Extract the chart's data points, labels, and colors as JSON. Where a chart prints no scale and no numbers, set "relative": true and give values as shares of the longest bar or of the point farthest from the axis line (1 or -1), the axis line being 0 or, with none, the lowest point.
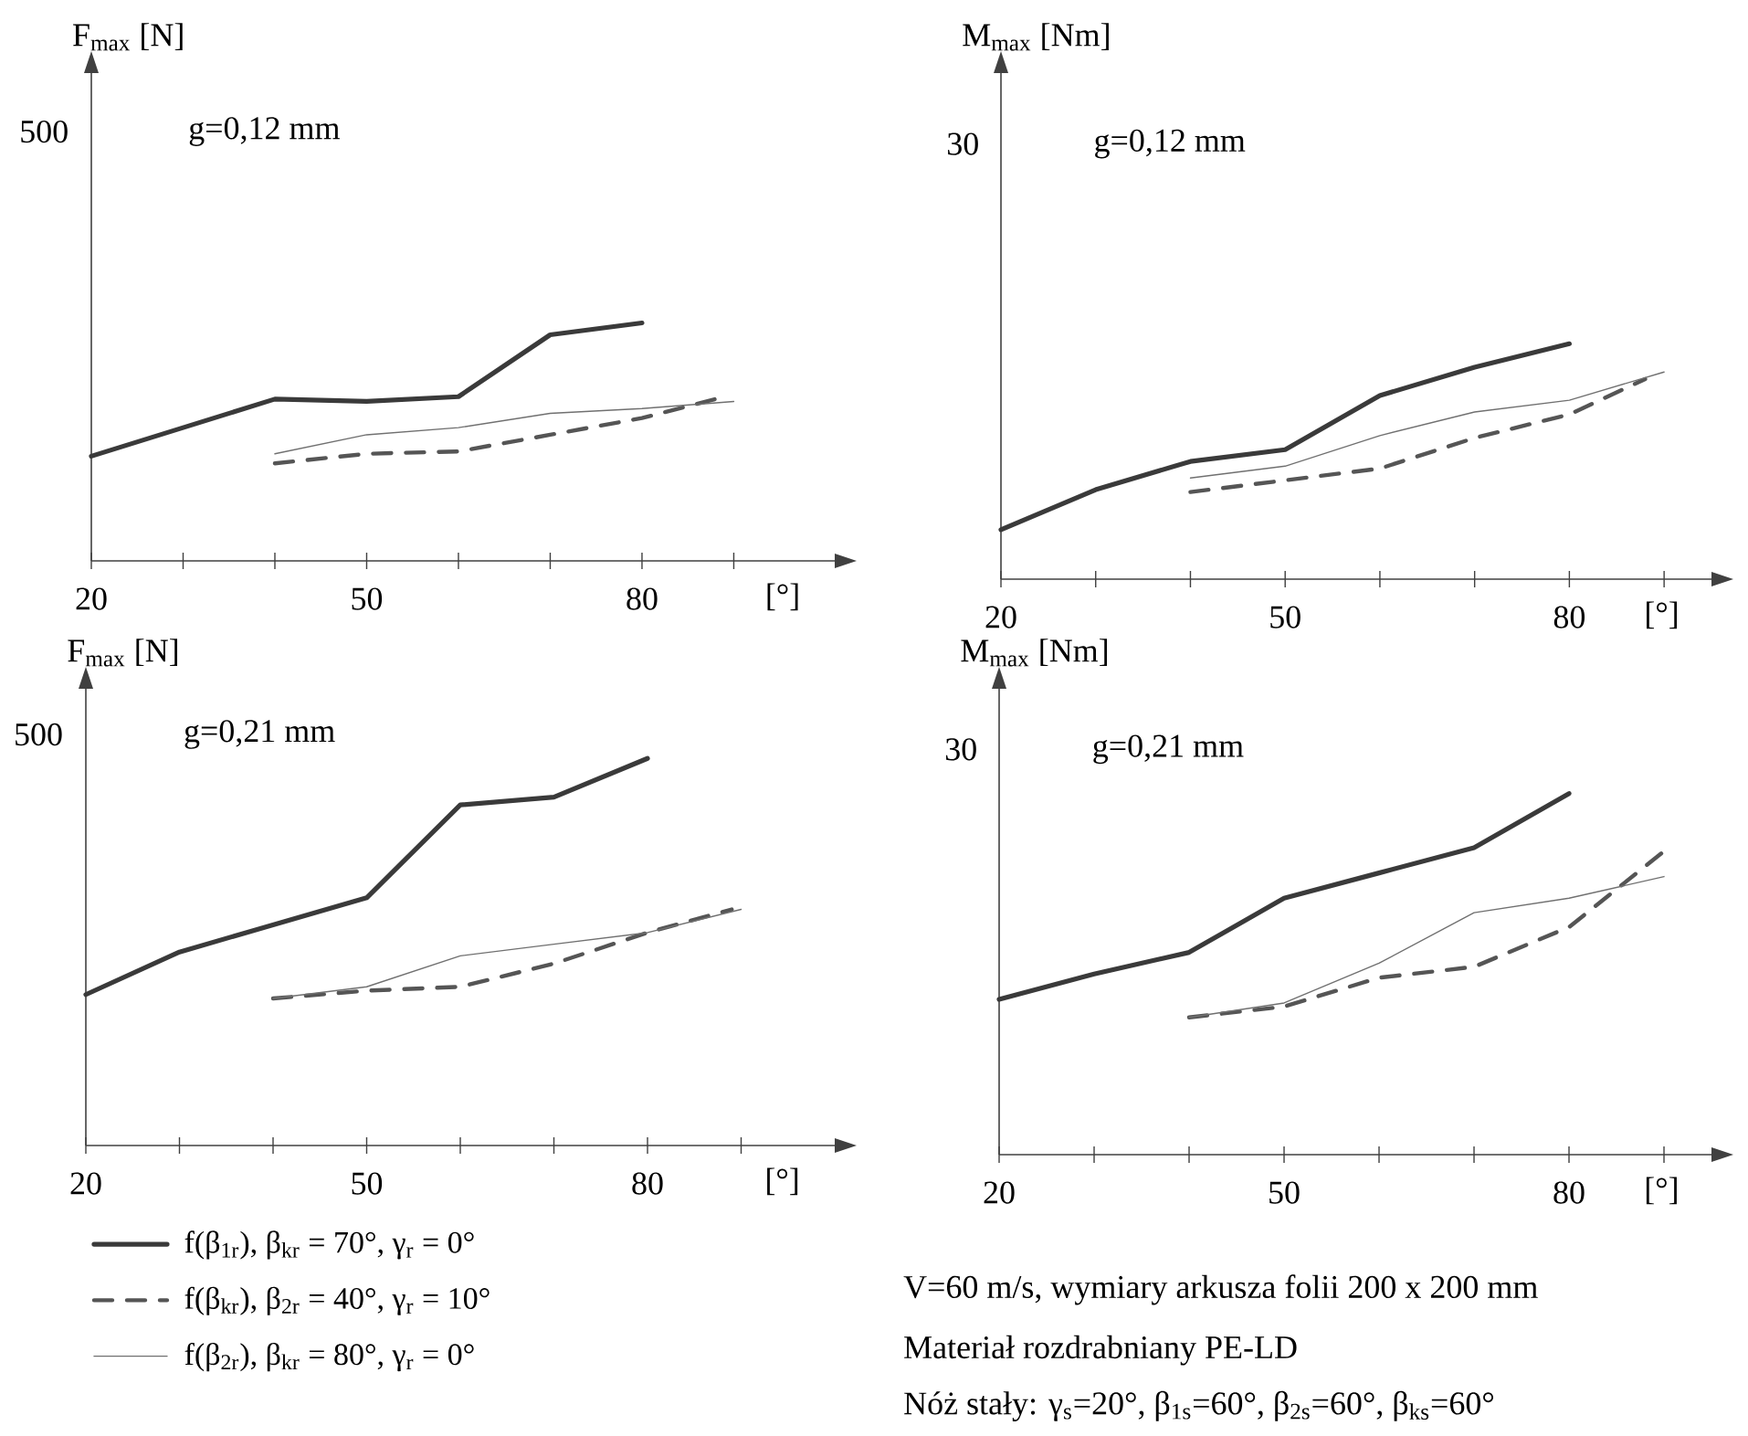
{
  "chart_data": [
    {
      "type": "line",
      "relative": true,
      "xlabel": "[°]",
      "ylabel": "F$_{max}$ [N]",
      "marker": "none",
      "xlim": [
        20,
        101
      ],
      "xticks": [
        20,
        {
          "value": 30,
          "label": null
        },
        {
          "value": 40,
          "label": null
        },
        50,
        {
          "value": 60,
          "label": null
        },
        {
          "value": 70,
          "label": null
        },
        80,
        {
          "value": 90,
          "label": null
        }
      ],
      "annotations": [
        "500",
        "g=0,12 mm"
      ],
      "series": [
        {
          "color": "#3a3a3a",
          "line_style": "solid",
          "x": [
            20,
            30,
            40,
            50,
            60,
            70,
            80
          ],
          "values": [
            0.44,
            0.56,
            0.68,
            0.67,
            0.69,
            0.95,
            1
          ]
        },
        {
          "color": "#555555",
          "line_style": "dashed",
          "x": [
            40,
            50,
            60,
            70,
            80,
            89
          ],
          "values": [
            0.41,
            0.45,
            0.46,
            0.53,
            0.6,
            0.69
          ]
        },
        {
          "color": "#707070",
          "line_style": "solid",
          "x": [
            40,
            50,
            60,
            70,
            80,
            90
          ],
          "values": [
            0.45,
            0.53,
            0.56,
            0.62,
            0.64,
            0.67
          ]
        }
      ]
    },
    {
      "type": "line",
      "relative": true,
      "xlabel": "[°]",
      "ylabel": "M$_{max}$ [Nm]",
      "marker": "none",
      "xlim": [
        20,
        95
      ],
      "xticks": [
        20,
        {
          "value": 30,
          "label": null
        },
        {
          "value": 40,
          "label": null
        },
        50,
        {
          "value": 60,
          "label": null
        },
        {
          "value": 70,
          "label": null
        },
        80,
        {
          "value": 90,
          "label": null
        }
      ],
      "annotations": [
        "30",
        "g=0,12 mm"
      ],
      "series": [
        {
          "color": "#3a3a3a",
          "line_style": "solid",
          "x": [
            20,
            30,
            40,
            50,
            60,
            70,
            80
          ],
          "values": [
            0.21,
            0.38,
            0.5,
            0.55,
            0.78,
            0.9,
            1
          ]
        },
        {
          "color": "#555555",
          "line_style": "dashed",
          "x": [
            40,
            50,
            60,
            70,
            80,
            88
          ],
          "values": [
            0.37,
            0.42,
            0.47,
            0.6,
            0.7,
            0.85
          ]
        },
        {
          "color": "#707070",
          "line_style": "solid",
          "x": [
            40,
            50,
            60,
            70,
            80,
            90
          ],
          "values": [
            0.43,
            0.48,
            0.61,
            0.71,
            0.76,
            0.88
          ]
        }
      ]
    },
    {
      "type": "line",
      "relative": true,
      "xlabel": "[°]",
      "ylabel": "F$_{max}$ [N]",
      "marker": "none",
      "xlim": [
        20,
        100
      ],
      "legend": "bottom",
      "xticks": [
        20,
        {
          "value": 30,
          "label": null
        },
        {
          "value": 40,
          "label": null
        },
        50,
        {
          "value": 60,
          "label": null
        },
        {
          "value": 70,
          "label": null
        },
        80,
        {
          "value": 90,
          "label": null
        }
      ],
      "annotations": [
        "500",
        "g=0,21 mm"
      ],
      "series": [
        {
          "name": "f(β$_{1r}$), β$_{kr}$ = 70°, γ$_{r}$ = 0°",
          "color": "#3a3a3a",
          "line_style": "solid",
          "x": [
            20,
            30,
            40,
            50,
            60,
            70,
            80
          ],
          "values": [
            0.39,
            0.5,
            0.57,
            0.64,
            0.88,
            0.9,
            1
          ]
        },
        {
          "name": "f(β$_{kr}$), β$_{2r}$ = 40°, γ$_{r}$ = 10°",
          "color": "#555555",
          "line_style": "dashed",
          "x": [
            40,
            50,
            60,
            70,
            80,
            89
          ],
          "values": [
            0.38,
            0.4,
            0.41,
            0.47,
            0.55,
            0.61
          ]
        },
        {
          "name": "f(β$_{2r}$), β$_{kr}$ = 80°, γ$_{r}$ = 0°",
          "color": "#707070",
          "line_style": "solid",
          "x": [
            40,
            50,
            60,
            70,
            80,
            90
          ],
          "values": [
            0.38,
            0.41,
            0.49,
            0.52,
            0.55,
            0.61
          ]
        }
      ]
    },
    {
      "type": "line",
      "relative": true,
      "xlabel": "[°]",
      "ylabel": "M$_{max}$ [Nm]",
      "marker": "none",
      "xlim": [
        20,
        95
      ],
      "xticks": [
        20,
        {
          "value": 30,
          "label": null
        },
        {
          "value": 40,
          "label": null
        },
        50,
        {
          "value": 60,
          "label": null
        },
        {
          "value": 70,
          "label": null
        },
        80,
        {
          "value": 90,
          "label": null
        }
      ],
      "annotations": [
        "30",
        "g=0,21 mm",
        "V=60 m/s,    wymiary arkusza folii 200 x 200 mm",
        "Materiał rozdrabniany PE-LD",
        "Nóż stały: γ$_{s}$=20°,  β$_{1s}$=60°, β$_{2s}$=60°, β$_{ks}$=60°"
      ],
      "series": [
        {
          "color": "#3a3a3a",
          "line_style": "solid",
          "x": [
            20,
            30,
            40,
            50,
            60,
            70,
            80
          ],
          "values": [
            0.43,
            0.5,
            0.56,
            0.71,
            0.78,
            0.85,
            1
          ]
        },
        {
          "color": "#555555",
          "line_style": "dashed",
          "x": [
            40,
            50,
            60,
            70,
            80,
            90
          ],
          "values": [
            0.38,
            0.41,
            0.49,
            0.52,
            0.63,
            0.84
          ]
        },
        {
          "color": "#707070",
          "line_style": "solid",
          "x": [
            40,
            50,
            60,
            70,
            80,
            90
          ],
          "values": [
            0.38,
            0.42,
            0.53,
            0.67,
            0.71,
            0.77
          ]
        }
      ]
    }
  ]
}
